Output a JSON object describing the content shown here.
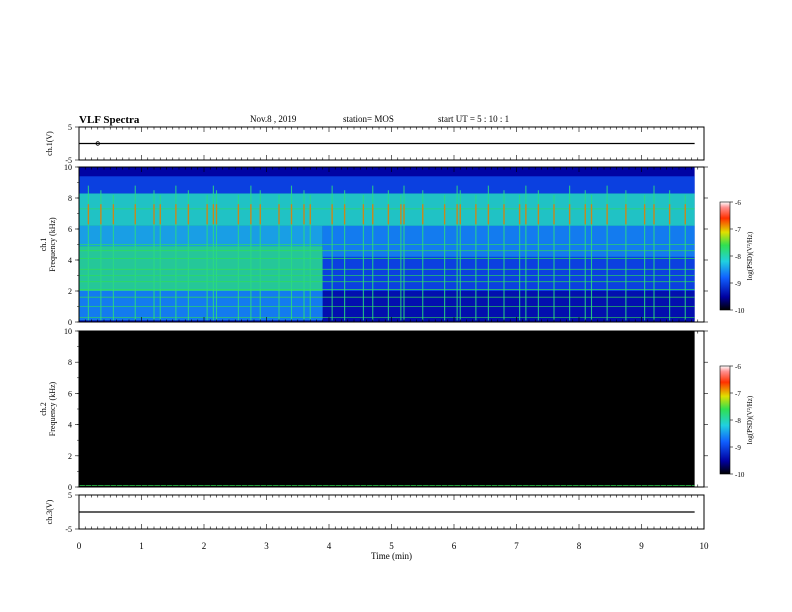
{
  "header": {
    "title": "VLF Spectra",
    "date": "Nov.8 , 2019",
    "station": "station= MOS",
    "start_time": "start UT = 5 : 10 : 1"
  },
  "colors": {
    "background": "#ffffff",
    "spectrogram_floor": "#000000",
    "trace": "#000000"
  },
  "chart_data": [
    {
      "panel": "ch1-waveform",
      "type": "line",
      "ylabel": "ch.1(V)",
      "yticks": [
        "5",
        "-5"
      ],
      "ylim": [
        -5,
        5
      ],
      "series": [
        {
          "x": [
            0,
            9.85
          ],
          "values": [
            0,
            0
          ]
        }
      ],
      "marker_times_min": [
        0.3
      ]
    },
    {
      "panel": "ch1-spectrogram",
      "type": "heatmap",
      "ylabel": "ch.1 Frequency (kHz)",
      "yticks": [
        "0",
        "2",
        "4",
        "6",
        "8",
        "10"
      ],
      "ylim": [
        0,
        10
      ],
      "xlim": [
        0,
        10
      ],
      "data_extent_min": 9.85,
      "background_level": -9.5,
      "bands": [
        {
          "t_start": 0,
          "t_end": 3.9,
          "f_low": 0.1,
          "f_high": 2.0,
          "level": -8.6
        },
        {
          "t_start": 0,
          "t_end": 3.9,
          "f_low": 2.0,
          "f_high": 4.9,
          "level": -7.9
        },
        {
          "t_start": 0,
          "t_end": 3.9,
          "f_low": 4.9,
          "f_high": 6.2,
          "level": -8.4
        },
        {
          "t_start": 0,
          "t_end": 9.85,
          "f_low": 6.2,
          "f_high": 8.3,
          "level": -8.1
        },
        {
          "t_start": 0,
          "t_end": 9.85,
          "f_low": 8.3,
          "f_high": 9.4,
          "level": -9.0
        },
        {
          "t_start": 3.9,
          "t_end": 9.85,
          "f_low": 0.1,
          "f_high": 2.0,
          "level": -9.4
        },
        {
          "t_start": 3.9,
          "t_end": 9.85,
          "f_low": 2.0,
          "f_high": 4.2,
          "level": -9.0
        },
        {
          "t_start": 3.9,
          "t_end": 9.85,
          "f_low": 4.2,
          "f_high": 6.2,
          "level": -8.6
        }
      ],
      "lines_khz": [
        0.3,
        1.0,
        1.6,
        2.1,
        2.6,
        3.0,
        3.4,
        4.1,
        4.6,
        5.0,
        7.3
      ],
      "atmospherics_min": [
        0.15,
        0.35,
        0.55,
        0.9,
        1.2,
        1.3,
        1.55,
        1.75,
        2.05,
        2.15,
        2.2,
        2.55,
        2.75,
        2.9,
        3.2,
        3.4,
        3.6,
        3.7,
        4.05,
        4.25,
        4.55,
        4.7,
        4.95,
        5.15,
        5.2,
        5.5,
        5.85,
        6.05,
        6.1,
        6.35,
        6.55,
        6.8,
        7.05,
        7.15,
        7.35,
        7.6,
        7.85,
        8.1,
        8.2,
        8.45,
        8.75,
        9.05,
        9.2,
        9.45,
        9.7
      ],
      "colorbar": {
        "label": "log(PSD)(V²/Hz)",
        "ticks": [
          "-6",
          "-7",
          "-8",
          "-9",
          "-10"
        ],
        "range": [
          -10,
          -6
        ]
      }
    },
    {
      "panel": "ch2-spectrogram",
      "type": "heatmap",
      "ylabel": "ch.2 Frequency (kHz)",
      "yticks": [
        "0",
        "2",
        "4",
        "6",
        "8",
        "10"
      ],
      "ylim": [
        0,
        10
      ],
      "xlim": [
        0,
        10
      ],
      "data_extent_min": 9.85,
      "background_level": -10,
      "lines_khz": [
        0.1
      ],
      "colorbar": {
        "label": "log(PSD)(V²/Hz)",
        "ticks": [
          "-6",
          "-7",
          "-8",
          "-9",
          "-10"
        ],
        "range": [
          -10,
          -6
        ]
      }
    },
    {
      "panel": "ch3-waveform",
      "type": "line",
      "ylabel": "ch.3(V)",
      "yticks": [
        "5",
        "-5"
      ],
      "ylim": [
        -5,
        5
      ],
      "series": [
        {
          "x": [
            0,
            9.85
          ],
          "values": [
            0,
            0
          ]
        }
      ],
      "xlabel": "Time (min)",
      "xticks": [
        "0",
        "1",
        "2",
        "3",
        "4",
        "5",
        "6",
        "7",
        "8",
        "9",
        "10"
      ],
      "xlim": [
        0,
        10
      ]
    }
  ]
}
